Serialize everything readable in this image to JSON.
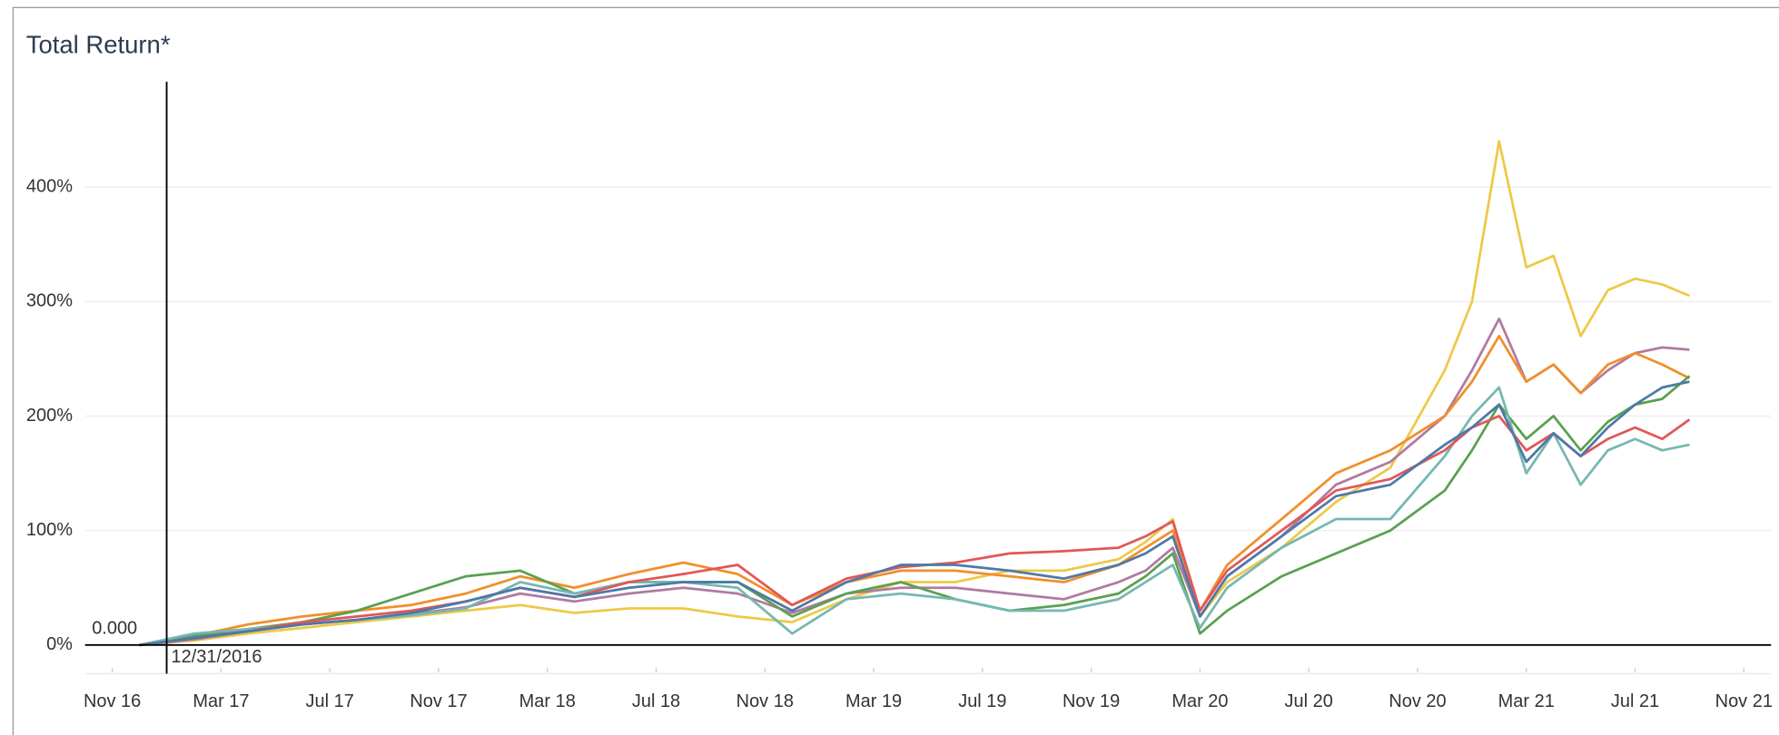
{
  "chart_data": {
    "type": "line",
    "title": "Total Return*",
    "x": [
      "2016-12",
      "2017-02",
      "2017-04",
      "2017-06",
      "2017-08",
      "2017-10",
      "2017-12",
      "2018-02",
      "2018-04",
      "2018-06",
      "2018-08",
      "2018-10",
      "2018-12",
      "2019-02",
      "2019-04",
      "2019-06",
      "2019-08",
      "2019-10",
      "2019-12",
      "2020-01",
      "2020-02",
      "2020-03",
      "2020-04",
      "2020-06",
      "2020-08",
      "2020-10",
      "2020-12",
      "2021-01",
      "2021-02",
      "2021-03",
      "2021-04",
      "2021-05",
      "2021-06",
      "2021-07",
      "2021-08",
      "2021-09"
    ],
    "series": [
      {
        "color": "#edc948",
        "values": [
          0,
          4,
          10,
          15,
          20,
          25,
          30,
          35,
          28,
          32,
          32,
          25,
          20,
          40,
          55,
          55,
          65,
          65,
          75,
          90,
          110,
          25,
          55,
          85,
          125,
          155,
          240,
          300,
          440,
          330,
          340,
          270,
          310,
          320,
          315,
          305
        ]
      },
      {
        "color": "#b07aa1",
        "values": [
          0,
          5,
          12,
          18,
          22,
          27,
          33,
          45,
          38,
          45,
          50,
          45,
          28,
          45,
          50,
          50,
          45,
          40,
          55,
          65,
          85,
          25,
          60,
          95,
          140,
          160,
          200,
          240,
          285,
          230,
          245,
          220,
          240,
          255,
          260,
          258
        ]
      },
      {
        "color": "#f28e2b",
        "values": [
          0,
          8,
          18,
          25,
          30,
          35,
          45,
          60,
          50,
          62,
          72,
          62,
          35,
          55,
          65,
          65,
          60,
          55,
          70,
          85,
          100,
          30,
          70,
          110,
          150,
          170,
          200,
          230,
          270,
          230,
          245,
          220,
          245,
          255,
          245,
          233
        ]
      },
      {
        "color": "#59a14f",
        "values": [
          0,
          8,
          14,
          20,
          30,
          45,
          60,
          65,
          45,
          55,
          55,
          55,
          25,
          45,
          55,
          40,
          30,
          35,
          45,
          60,
          80,
          10,
          30,
          60,
          80,
          100,
          135,
          170,
          210,
          180,
          200,
          170,
          195,
          210,
          215,
          235
        ]
      },
      {
        "color": "#76b7b2",
        "values": [
          0,
          10,
          14,
          18,
          22,
          26,
          32,
          55,
          45,
          55,
          55,
          50,
          10,
          40,
          45,
          40,
          30,
          30,
          40,
          55,
          70,
          15,
          50,
          85,
          110,
          110,
          165,
          200,
          225,
          150,
          185,
          140,
          170,
          180,
          170,
          175
        ]
      },
      {
        "color": "#e15759",
        "values": [
          0,
          6,
          12,
          20,
          25,
          30,
          38,
          50,
          42,
          55,
          62,
          70,
          35,
          58,
          68,
          72,
          80,
          82,
          85,
          95,
          108,
          30,
          65,
          100,
          135,
          145,
          170,
          190,
          200,
          170,
          185,
          165,
          180,
          190,
          180,
          197
        ]
      },
      {
        "color": "#4e79a7",
        "values": [
          0,
          6,
          12,
          18,
          22,
          28,
          38,
          50,
          42,
          50,
          55,
          55,
          30,
          55,
          70,
          70,
          65,
          58,
          70,
          80,
          95,
          25,
          60,
          95,
          130,
          140,
          175,
          190,
          210,
          160,
          185,
          165,
          190,
          210,
          225,
          230
        ]
      }
    ],
    "xlim": [
      "2016-10",
      "2021-12"
    ],
    "xticks": [
      {
        "value": "2016-11",
        "label": "Nov 16"
      },
      {
        "value": "2017-03",
        "label": "Mar 17"
      },
      {
        "value": "2017-07",
        "label": "Jul 17"
      },
      {
        "value": "2017-11",
        "label": "Nov 17"
      },
      {
        "value": "2018-03",
        "label": "Mar 18"
      },
      {
        "value": "2018-07",
        "label": "Jul 18"
      },
      {
        "value": "2018-11",
        "label": "Nov 18"
      },
      {
        "value": "2019-03",
        "label": "Mar 19"
      },
      {
        "value": "2019-07",
        "label": "Jul 19"
      },
      {
        "value": "2019-11",
        "label": "Nov 19"
      },
      {
        "value": "2020-03",
        "label": "Mar 20"
      },
      {
        "value": "2020-07",
        "label": "Jul 20"
      },
      {
        "value": "2020-11",
        "label": "Nov 20"
      },
      {
        "value": "2021-03",
        "label": "Mar 21"
      },
      {
        "value": "2021-07",
        "label": "Jul 21"
      },
      {
        "value": "2021-11",
        "label": "Nov 21"
      }
    ],
    "ylim": [
      -20,
      490
    ],
    "yticks": [
      {
        "value": 0,
        "label": "0%"
      },
      {
        "value": 100,
        "label": "100%"
      },
      {
        "value": 200,
        "label": "200%"
      },
      {
        "value": 300,
        "label": "300%"
      },
      {
        "value": 400,
        "label": "400%"
      }
    ],
    "grid": true,
    "reference_lines": {
      "x": {
        "value": "2016-12-31",
        "label": "12/31/2016"
      },
      "y": {
        "value": 0,
        "label": "0.000"
      }
    }
  }
}
